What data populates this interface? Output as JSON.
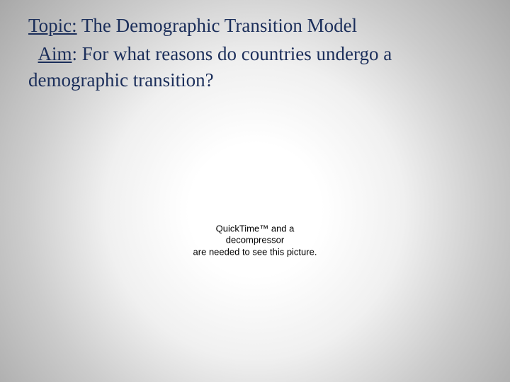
{
  "topic": {
    "label": "Topic:",
    "text": " The Demographic Transition Model",
    "label_color": "#1b2e5a",
    "text_color": "#1b2e5a",
    "fontsize": 27
  },
  "aim": {
    "label": "Aim",
    "colon": ": ",
    "text": "For what reasons do countries undergo a demographic transition?",
    "label_color": "#1b2e5a",
    "text_color": "#1b2e5a",
    "fontsize": 27
  },
  "placeholder": {
    "line1": "QuickTime™ and a",
    "line2": "decompressor",
    "line3": "are needed to see this picture.",
    "fontsize": 13,
    "color": "#000000"
  },
  "background": {
    "center_color": "#ffffff",
    "edge_color": "#a8a8a8"
  }
}
